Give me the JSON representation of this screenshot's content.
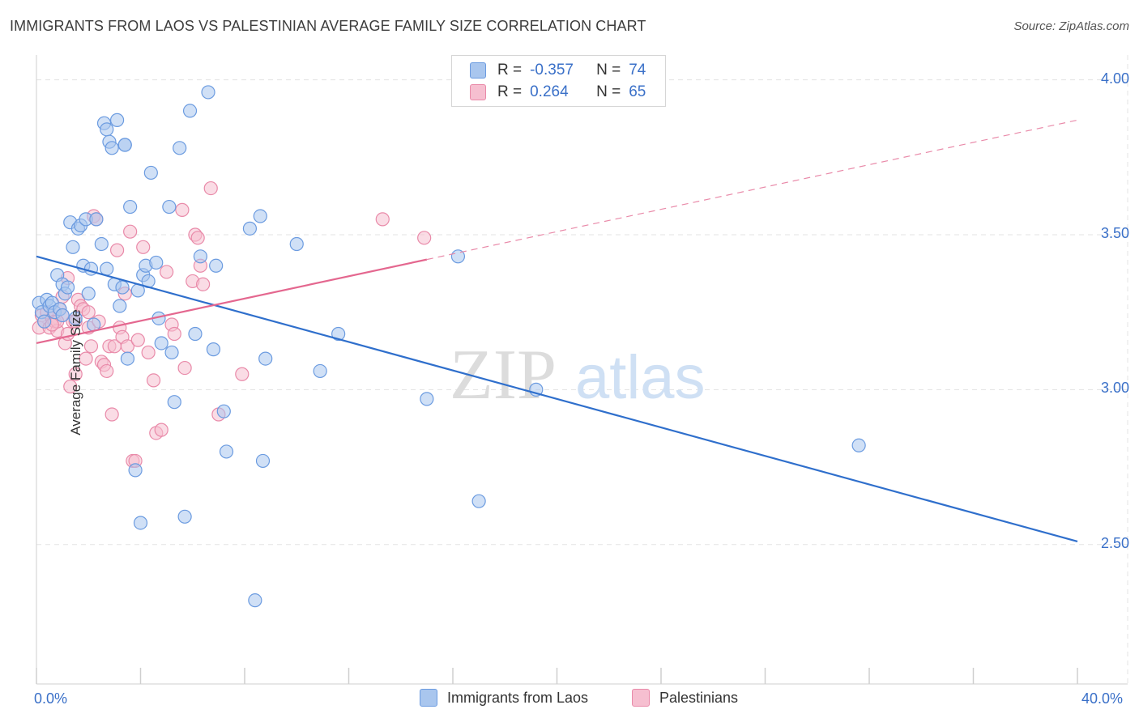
{
  "title": "IMMIGRANTS FROM LAOS VS PALESTINIAN AVERAGE FAMILY SIZE CORRELATION CHART",
  "source": "Source: ZipAtlas.com",
  "watermark": {
    "zip": "ZIP",
    "atlas": "atlas"
  },
  "colors": {
    "blue_fill": "#a9c6ee",
    "blue_stroke": "#6b9be0",
    "blue_line": "#2f6fcc",
    "pink_fill": "#f6bfd0",
    "pink_stroke": "#e98aa9",
    "pink_line": "#e4678f",
    "tick_text": "#3a70c8",
    "grid": "#e3e3e3"
  },
  "legend": {
    "rows": [
      {
        "r_label": "R =",
        "r_value": "-0.357",
        "n_label": "N =",
        "n_value": "74",
        "series": "blue"
      },
      {
        "r_label": "R =",
        "r_value": "0.264",
        "n_label": "N =",
        "n_value": "65",
        "series": "pink"
      }
    ]
  },
  "bottom_legend": [
    {
      "label": "Immigrants from Laos",
      "series": "blue"
    },
    {
      "label": "Palestinians",
      "series": "pink"
    }
  ],
  "chart_data": {
    "type": "scatter",
    "title": "IMMIGRANTS FROM LAOS VS PALESTINIAN AVERAGE FAMILY SIZE CORRELATION CHART",
    "xlabel": "",
    "ylabel": "Average Family Size",
    "xlim": [
      0,
      40
    ],
    "ylim": [
      2.05,
      4.08
    ],
    "x_tick_labels": {
      "min": "0.0%",
      "max": "40.0%"
    },
    "y_ticks": [
      {
        "value": 4.0,
        "label": "4.00"
      },
      {
        "value": 3.5,
        "label": "3.50"
      },
      {
        "value": 3.0,
        "label": "3.00"
      },
      {
        "value": 2.5,
        "label": "2.50"
      }
    ],
    "grid": true,
    "legend_placement": "top-center",
    "series": [
      {
        "name": "Immigrants from Laos",
        "color": "#6b9be0",
        "trend": {
          "x": [
            0,
            40
          ],
          "y": [
            3.43,
            2.51
          ]
        },
        "points": [
          [
            0.1,
            3.28
          ],
          [
            0.2,
            3.25
          ],
          [
            0.3,
            3.22
          ],
          [
            0.4,
            3.29
          ],
          [
            0.5,
            3.27
          ],
          [
            0.6,
            3.28
          ],
          [
            0.7,
            3.25
          ],
          [
            0.8,
            3.37
          ],
          [
            0.9,
            3.26
          ],
          [
            1.0,
            3.24
          ],
          [
            1.0,
            3.34
          ],
          [
            1.1,
            3.31
          ],
          [
            1.2,
            3.33
          ],
          [
            1.3,
            3.54
          ],
          [
            1.4,
            3.46
          ],
          [
            1.5,
            3.23
          ],
          [
            1.6,
            3.52
          ],
          [
            1.7,
            3.53
          ],
          [
            1.8,
            3.4
          ],
          [
            1.9,
            3.55
          ],
          [
            2.0,
            3.31
          ],
          [
            2.1,
            3.39
          ],
          [
            2.2,
            3.21
          ],
          [
            2.3,
            3.55
          ],
          [
            2.5,
            3.47
          ],
          [
            2.6,
            3.86
          ],
          [
            2.7,
            3.84
          ],
          [
            2.7,
            3.39
          ],
          [
            2.8,
            3.8
          ],
          [
            2.9,
            3.78
          ],
          [
            3.0,
            3.34
          ],
          [
            3.1,
            3.87
          ],
          [
            3.2,
            3.27
          ],
          [
            3.3,
            3.33
          ],
          [
            3.4,
            3.79
          ],
          [
            3.4,
            3.79
          ],
          [
            3.5,
            3.1
          ],
          [
            3.6,
            3.59
          ],
          [
            3.8,
            2.74
          ],
          [
            3.9,
            3.32
          ],
          [
            4.0,
            2.57
          ],
          [
            4.1,
            3.37
          ],
          [
            4.2,
            3.4
          ],
          [
            4.3,
            3.35
          ],
          [
            4.4,
            3.7
          ],
          [
            4.6,
            3.41
          ],
          [
            4.7,
            3.23
          ],
          [
            4.8,
            3.15
          ],
          [
            5.1,
            3.59
          ],
          [
            5.2,
            3.12
          ],
          [
            5.3,
            2.96
          ],
          [
            5.5,
            3.78
          ],
          [
            5.7,
            2.59
          ],
          [
            5.9,
            3.9
          ],
          [
            6.1,
            3.18
          ],
          [
            6.3,
            3.43
          ],
          [
            6.6,
            3.96
          ],
          [
            6.8,
            3.13
          ],
          [
            6.9,
            3.4
          ],
          [
            7.2,
            2.93
          ],
          [
            7.3,
            2.8
          ],
          [
            8.2,
            3.52
          ],
          [
            8.6,
            3.56
          ],
          [
            8.7,
            2.77
          ],
          [
            8.8,
            3.1
          ],
          [
            8.4,
            2.32
          ],
          [
            10.0,
            3.47
          ],
          [
            10.9,
            3.06
          ],
          [
            11.6,
            3.18
          ],
          [
            15.0,
            2.97
          ],
          [
            16.2,
            3.43
          ],
          [
            17.0,
            2.64
          ],
          [
            19.2,
            3.0
          ],
          [
            31.6,
            2.82
          ]
        ]
      },
      {
        "name": "Palestinians",
        "color": "#e98aa9",
        "trend": {
          "x": [
            0,
            15
          ],
          "y": [
            3.15,
            3.42
          ]
        },
        "trend_extension": {
          "x": [
            15,
            40
          ],
          "y": [
            3.42,
            3.87
          ]
        },
        "points": [
          [
            0.1,
            3.2
          ],
          [
            0.2,
            3.24
          ],
          [
            0.3,
            3.22
          ],
          [
            0.4,
            3.25
          ],
          [
            0.5,
            3.2
          ],
          [
            0.6,
            3.23
          ],
          [
            0.7,
            3.22
          ],
          [
            0.8,
            3.19
          ],
          [
            0.9,
            3.26
          ],
          [
            1.0,
            3.3
          ],
          [
            1.0,
            3.24
          ],
          [
            1.1,
            3.15
          ],
          [
            1.2,
            3.18
          ],
          [
            1.3,
            3.01
          ],
          [
            1.4,
            3.22
          ],
          [
            1.5,
            3.05
          ],
          [
            1.6,
            3.29
          ],
          [
            1.7,
            3.27
          ],
          [
            1.8,
            3.26
          ],
          [
            1.9,
            3.1
          ],
          [
            2.0,
            3.2
          ],
          [
            2.1,
            3.14
          ],
          [
            2.2,
            3.56
          ],
          [
            2.3,
            3.55
          ],
          [
            2.4,
            3.22
          ],
          [
            2.5,
            3.09
          ],
          [
            2.6,
            3.08
          ],
          [
            2.7,
            3.06
          ],
          [
            2.8,
            3.14
          ],
          [
            2.9,
            2.92
          ],
          [
            3.0,
            3.14
          ],
          [
            3.1,
            3.45
          ],
          [
            3.2,
            3.2
          ],
          [
            3.3,
            3.17
          ],
          [
            3.4,
            3.31
          ],
          [
            3.5,
            3.14
          ],
          [
            3.6,
            3.51
          ],
          [
            3.7,
            2.77
          ],
          [
            3.8,
            2.77
          ],
          [
            3.9,
            3.16
          ],
          [
            4.1,
            3.46
          ],
          [
            4.3,
            3.12
          ],
          [
            4.5,
            3.03
          ],
          [
            4.6,
            2.86
          ],
          [
            4.8,
            2.87
          ],
          [
            5.0,
            3.38
          ],
          [
            5.2,
            3.21
          ],
          [
            5.3,
            3.18
          ],
          [
            5.6,
            3.58
          ],
          [
            5.7,
            3.07
          ],
          [
            6.0,
            3.35
          ],
          [
            6.1,
            3.5
          ],
          [
            6.2,
            3.49
          ],
          [
            6.3,
            3.4
          ],
          [
            6.4,
            3.34
          ],
          [
            6.7,
            3.65
          ],
          [
            7.0,
            2.92
          ],
          [
            7.9,
            3.05
          ],
          [
            1.5,
            3.22
          ],
          [
            0.8,
            3.22
          ],
          [
            0.6,
            3.21
          ],
          [
            1.2,
            3.36
          ],
          [
            13.3,
            3.55
          ],
          [
            14.9,
            3.49
          ],
          [
            2.0,
            3.25
          ]
        ]
      }
    ]
  }
}
